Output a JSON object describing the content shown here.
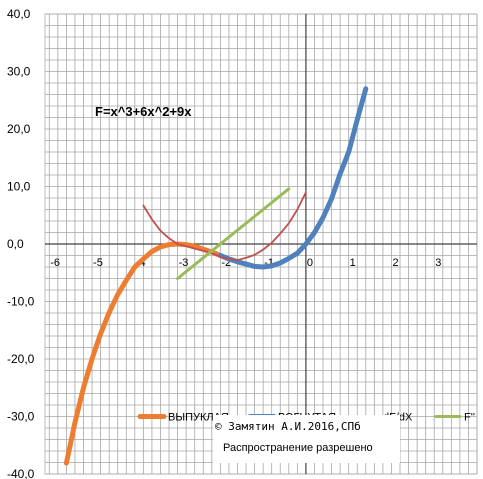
{
  "chart_data": {
    "type": "line",
    "title": "F=x^3+6x^2+9x",
    "xlabel": "",
    "ylabel": "",
    "xlim": [
      -6.1,
      4
    ],
    "ylim": [
      -40,
      40
    ],
    "x_ticks": [
      "-6",
      "-5",
      "-4",
      "-3",
      "-2",
      "-1",
      "0",
      "1",
      "2",
      "3"
    ],
    "y_ticks": [
      "40,0",
      "30,0",
      "20,0",
      "10,0",
      "0,0",
      "-10,0",
      "-20,0",
      "-30,0",
      "-40,0"
    ],
    "grid": true,
    "legend_position": "bottom-right",
    "series": [
      {
        "name": "ВЫПУКЛАЯ",
        "color": "#ed7d31",
        "x": [
          -5.6,
          -5.4,
          -5.2,
          -5.0,
          -4.8,
          -4.6,
          -4.4,
          -4.2,
          -4.0,
          -3.8,
          -3.6,
          -3.4,
          -3.2,
          -3.0,
          -2.8,
          -2.6,
          -2.4,
          -2.2,
          -2.0
        ],
        "y": [
          -38.1,
          -31.1,
          -25.0,
          -20.0,
          -15.6,
          -11.9,
          -8.8,
          -6.3,
          -4.0,
          -2.6,
          -1.3,
          -0.5,
          -0.1,
          0.0,
          -0.1,
          -0.4,
          -0.9,
          -1.4,
          -2.0
        ]
      },
      {
        "name": "ВОГНУТАЯ",
        "color": "#4f81bd",
        "x": [
          -2.0,
          -1.8,
          -1.6,
          -1.4,
          -1.2,
          -1.0,
          -0.8,
          -0.6,
          -0.4,
          -0.2,
          0.0,
          0.2,
          0.4,
          0.6,
          0.8,
          1.0,
          1.2,
          1.4
        ],
        "y": [
          -2.0,
          -2.6,
          -3.1,
          -3.5,
          -3.9,
          -4.0,
          -3.8,
          -3.3,
          -2.5,
          -1.6,
          0.0,
          2.0,
          4.6,
          7.9,
          12.2,
          16.0,
          21.6,
          27.0
        ]
      },
      {
        "name": "dF/dX",
        "color": "#c0504d",
        "x": [
          -3.8,
          -3.6,
          -3.4,
          -3.2,
          -3.0,
          -2.8,
          -2.6,
          -2.4,
          -2.2,
          -2.0,
          -1.8,
          -1.6,
          -1.4,
          -1.2,
          -1.0,
          -0.8,
          -0.6,
          -0.4,
          -0.2,
          0.0
        ],
        "y": [
          6.7,
          4.3,
          2.3,
          1.0,
          0.0,
          -0.4,
          -0.8,
          -1.2,
          -1.6,
          -2.2,
          -2.6,
          -2.8,
          -2.4,
          -1.9,
          -1.0,
          0.2,
          1.8,
          3.6,
          6.0,
          9.0
        ]
      },
      {
        "name": "F''",
        "color": "#9bbb59",
        "x": [
          -3.0,
          -0.4
        ],
        "y": [
          -6.0,
          9.6
        ]
      }
    ]
  },
  "annotations": {
    "formula": "F=x^3+6x^2+9x",
    "copyright": "© Замятин А.И.2016,СПб",
    "license": "Распространение разрешено"
  }
}
